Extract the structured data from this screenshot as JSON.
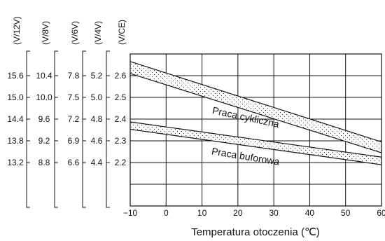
{
  "chart_data": {
    "type": "line",
    "xlabel": "Temperatura otoczenia (℃)",
    "x_ticks": [
      -10,
      0,
      10,
      20,
      30,
      40,
      50,
      60
    ],
    "x_tick_labels": [
      "−10",
      "0",
      "10",
      "20",
      "30",
      "40",
      "50",
      "60"
    ],
    "xlim": [
      -10,
      60
    ],
    "ylim": [
      2.0,
      2.7
    ],
    "grid": true,
    "voltage_scales": [
      {
        "header": "(V/12V)",
        "ticks": [
          "15.6",
          "15.0",
          "14.4",
          "13.8",
          "13.2"
        ]
      },
      {
        "header": "(V/8V)",
        "ticks": [
          "10.4",
          "10.0",
          "9.6",
          "9.2",
          "8.8"
        ]
      },
      {
        "header": "(V/6V)",
        "ticks": [
          "7.8",
          "7.5",
          "7.2",
          "6.9",
          "6.6"
        ]
      },
      {
        "header": "(V/4V)",
        "ticks": [
          "5.2",
          "5.0",
          "4.8",
          "4.6",
          "4.4"
        ]
      },
      {
        "header": "(V/CE)",
        "ticks": [
          "2.6",
          "2.5",
          "2.4",
          "2.3",
          "2.2"
        ]
      }
    ],
    "scale_tick_values": [
      2.6,
      2.5,
      2.4,
      2.3,
      2.2
    ],
    "series": [
      {
        "name": "Praca cykliczna",
        "upper": [
          [
            -10,
            2.665
          ],
          [
            60,
            2.295
          ]
        ],
        "lower": [
          [
            -10,
            2.61
          ],
          [
            60,
            2.245
          ]
        ]
      },
      {
        "name": "Praca buforowa",
        "upper": [
          [
            -10,
            2.387
          ],
          [
            60,
            2.225
          ]
        ],
        "lower": [
          [
            -10,
            2.353
          ],
          [
            60,
            2.19
          ]
        ]
      }
    ]
  }
}
